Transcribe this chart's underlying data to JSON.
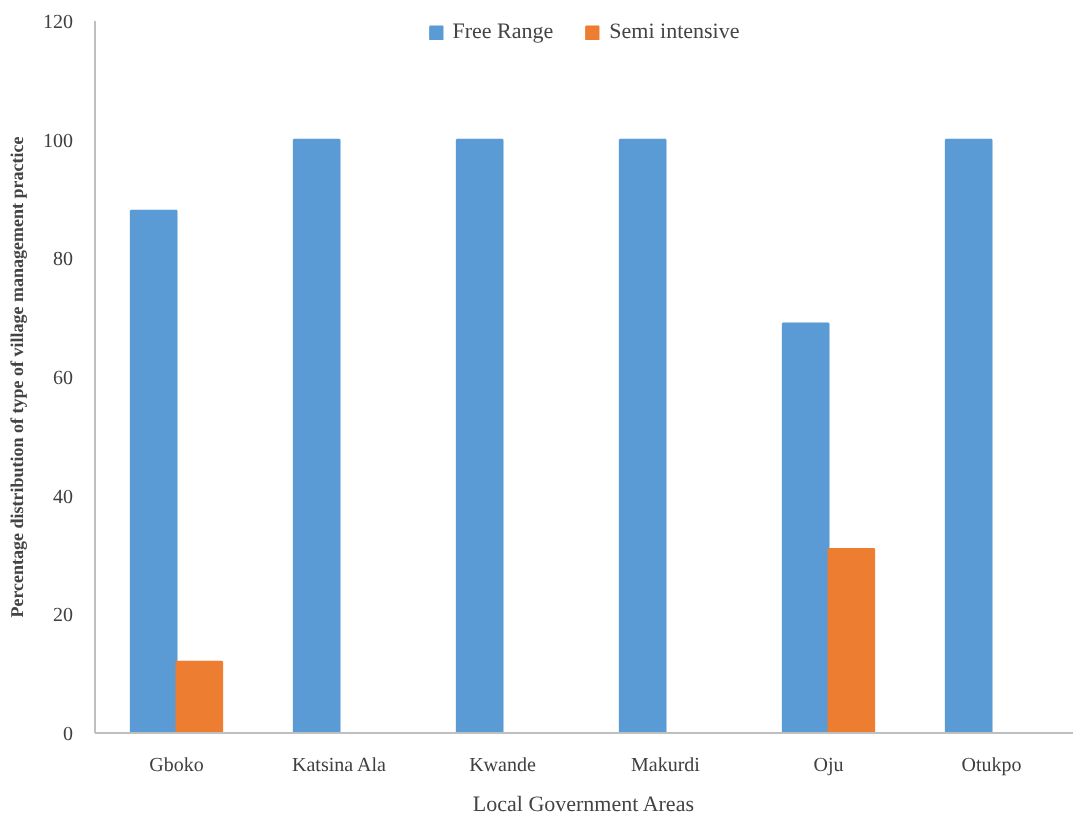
{
  "chart_data": {
    "type": "bar",
    "xlabel": "Local Government Areas",
    "ylabel": "Percentage distribution of type of village management practice",
    "categories": [
      "Gboko",
      "Katsina Ala",
      "Kwande",
      "Makurdi",
      "Oju",
      "Otukpo"
    ],
    "series": [
      {
        "name": "Free Range",
        "color": "#5b9bd5",
        "values": [
          88,
          100,
          100,
          100,
          69,
          100
        ]
      },
      {
        "name": "Semi intensive",
        "color": "#ed7d31",
        "values": [
          12,
          0,
          0,
          0,
          31,
          0
        ]
      }
    ],
    "ylim": [
      0,
      120
    ],
    "yticks": [
      0,
      20,
      40,
      60,
      80,
      100,
      120
    ],
    "grid": false,
    "legend": "top"
  }
}
